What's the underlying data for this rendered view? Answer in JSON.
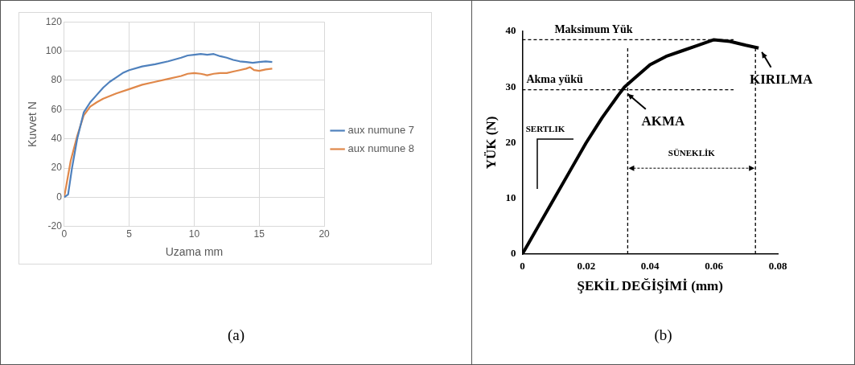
{
  "chart_data": [
    {
      "type": "line",
      "xlabel": "Uzama mm",
      "ylabel": "Kuvvet N",
      "xlim": [
        0,
        20
      ],
      "xticks": [
        0,
        5,
        10,
        15,
        20
      ],
      "ylim": [
        -20,
        120
      ],
      "yticks": [
        -20,
        0,
        20,
        40,
        60,
        80,
        100,
        120
      ],
      "grid": true,
      "legend": "right",
      "marker": "none",
      "annotations": [
        "(a)"
      ],
      "series": [
        {
          "name": "aux numune 7",
          "color": "#4f81bd",
          "x": [
            0,
            0.3,
            0.6,
            1,
            1.5,
            2,
            2.5,
            3,
            3.5,
            4,
            4.5,
            5,
            6,
            7,
            8,
            9,
            9.5,
            10,
            10.5,
            11,
            11.5,
            12,
            12.5,
            13,
            13.5,
            14,
            14.5,
            15,
            15.5,
            16
          ],
          "values": [
            0,
            2,
            20,
            40,
            58,
            65,
            70,
            75,
            79,
            82,
            85,
            87,
            89.5,
            91,
            93,
            95.5,
            97,
            97.5,
            98,
            97.5,
            98,
            96.5,
            95.5,
            94,
            93,
            92.5,
            92,
            92.5,
            93,
            92.5
          ]
        },
        {
          "name": "aux numune 8",
          "color": "#e0884a",
          "x": [
            0,
            0.2,
            0.5,
            1,
            1.5,
            2,
            2.5,
            3,
            4,
            5,
            6,
            7,
            8,
            9,
            9.5,
            10,
            10.5,
            11,
            11.5,
            12,
            12.5,
            13,
            13.5,
            14,
            14.3,
            14.6,
            15,
            15.5,
            16
          ],
          "values": [
            0,
            10,
            25,
            42,
            56,
            62,
            65,
            67.5,
            71,
            74,
            77,
            79,
            81,
            83,
            84.5,
            85,
            84.5,
            83.5,
            84.5,
            85,
            85,
            86,
            87,
            88,
            89,
            87,
            86.5,
            87.5,
            88
          ]
        }
      ]
    },
    {
      "type": "line",
      "xlabel": "ŞEKİL DEĞİŞİMİ (mm)",
      "ylabel": "YÜK (N)",
      "xlim": [
        0,
        0.08
      ],
      "xticks": [
        0,
        0.02,
        0.04,
        0.06,
        0.08
      ],
      "ylim": [
        0,
        40
      ],
      "yticks": [
        0,
        10,
        20,
        30,
        40
      ],
      "grid": false,
      "legend": false,
      "marker": "none",
      "series": [
        {
          "color": "#000000",
          "x": [
            0,
            0.002,
            0.005,
            0.01,
            0.015,
            0.02,
            0.025,
            0.03,
            0.032,
            0.035,
            0.04,
            0.045,
            0.05,
            0.055,
            0.06,
            0.065,
            0.07,
            0.074
          ],
          "values": [
            0,
            2,
            5,
            10,
            15,
            20,
            24.5,
            28.5,
            30,
            31.5,
            34,
            35.5,
            36.5,
            37.5,
            38.5,
            38.2,
            37.5,
            37
          ]
        }
      ],
      "ref_lines": [
        {
          "axis": "y",
          "value": 38.5,
          "label": "Maksimum Yük",
          "line_style": "dashed"
        },
        {
          "axis": "y",
          "value": 29.5,
          "label": "Akma yükü",
          "line_style": "dashed"
        },
        {
          "axis": "x",
          "value": 0.033,
          "line_style": "dashed"
        },
        {
          "axis": "x",
          "value": 0.073,
          "line_style": "dashed"
        }
      ],
      "annotations": [
        "SERTLIK",
        {
          "text": "AKMA",
          "x": 0.032,
          "y": 29.5
        },
        {
          "text": "KIRILMA",
          "x": 0.074,
          "y": 37
        },
        "SÜNEKLİK",
        "(b)"
      ]
    }
  ]
}
